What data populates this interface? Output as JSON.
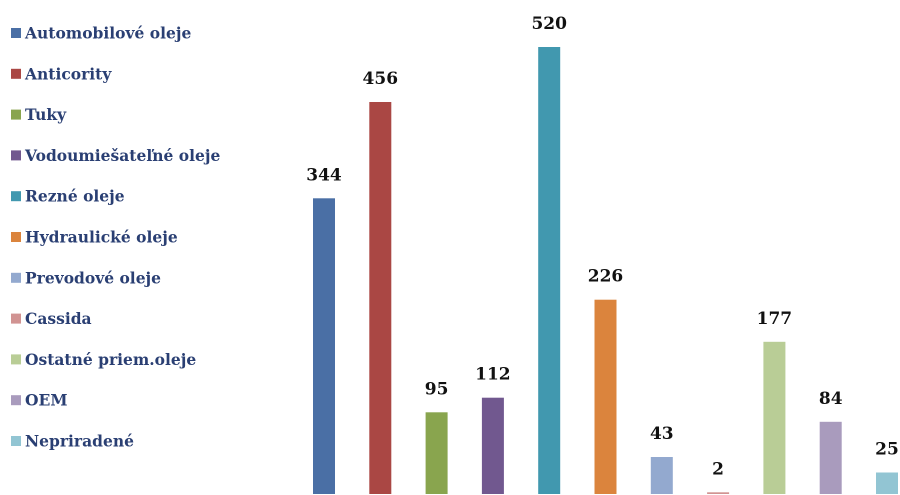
{
  "chart_data": {
    "type": "bar",
    "title": "",
    "xlabel": "",
    "ylabel": "",
    "ylim": [
      0,
      520
    ],
    "grid": false,
    "legend_position": "left",
    "categories": [
      "Automobilové oleje",
      "Anticority",
      "Tuky",
      "Vodoumiešateľné oleje",
      "Rezné oleje",
      "Hydraulické oleje",
      "Prevodové oleje",
      "Cassida",
      "Ostatné priem.oleje",
      "OEM",
      "Nepriradené"
    ],
    "series": [
      {
        "values": [
          344,
          456,
          95,
          112,
          520,
          226,
          43,
          2,
          177,
          84,
          25
        ]
      }
    ],
    "colors": [
      "#4a6fa5",
      "#aa4744",
      "#89a54e",
      "#71588f",
      "#4198af",
      "#db843d",
      "#93a9cf",
      "#d19392",
      "#b9cd96",
      "#a99bbd",
      "#92c5d3"
    ]
  }
}
